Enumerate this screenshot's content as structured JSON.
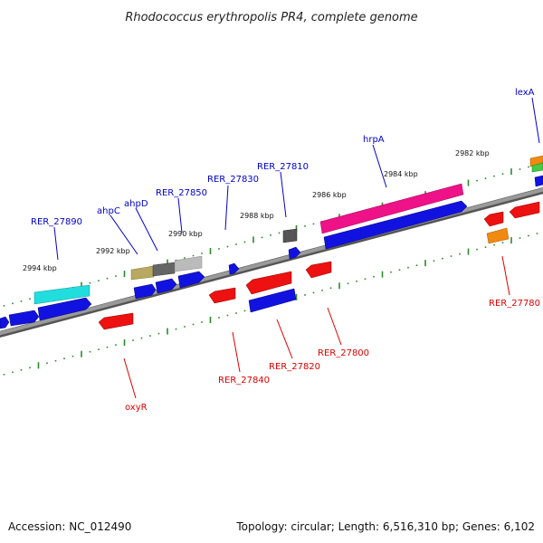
{
  "title": "Rhodococcus erythropolis PR4, complete genome",
  "footer": {
    "accession": "Accession: NC_012490",
    "summary": "Topology: circular; Length: 6,516,310 bp; Genes: 6,102"
  },
  "colors": {
    "forward_label": "#0000cc",
    "reverse_label": "#dd0000",
    "tick": "#2a8a2a",
    "backbone": "#8a8a8a",
    "forward_gene": "#1212e0",
    "reverse_gene": "#ee1111",
    "hrpA": "#ee1188",
    "cyan_gene": "#22dddd",
    "olive_gene": "#b8a860",
    "dark_gray_gene": "#666666",
    "light_gray_gene": "#bbbbbb",
    "orange_gene": "#f08a10",
    "green_gene": "#44cc44"
  },
  "ticks": {
    "bp_labels": [
      "2982 kbp",
      "2984 kbp",
      "2986 kbp",
      "2988 kbp",
      "2990 kbp",
      "2992 kbp",
      "2994 kbp"
    ]
  },
  "gene_labels": {
    "forward": [
      "lexA",
      "hrpA",
      "RER_27810",
      "RER_27830",
      "RER_27850",
      "ahpD",
      "ahpC",
      "RER_27890"
    ],
    "reverse": [
      "RER_27780",
      "RER_27800",
      "RER_27820",
      "RER_27840",
      "oxyR"
    ]
  }
}
